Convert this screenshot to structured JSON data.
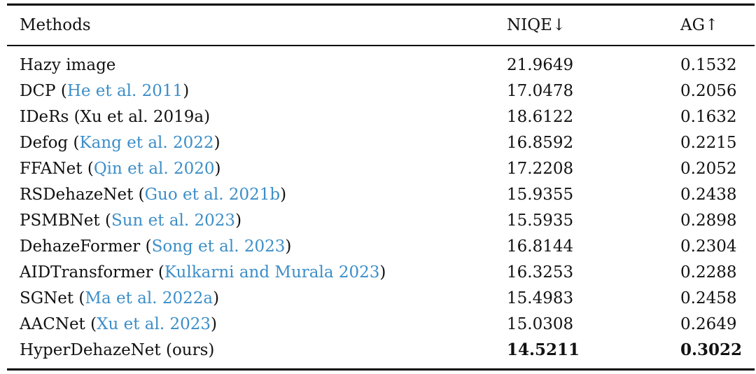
{
  "table": {
    "headers": {
      "method": "Methods",
      "niqe": "NIQE↓",
      "ag": "AG↑"
    },
    "rows": [
      {
        "name": "Hazy image",
        "cite": "",
        "niqe": "21.9649",
        "ag": "0.1532",
        "best": false
      },
      {
        "name": "DCP",
        "cite": "He et al. 2011",
        "niqe": "17.0478",
        "ag": "0.2056",
        "best": false
      },
      {
        "name": "IDeRs (Xu et al. 2019a)",
        "cite": "",
        "niqe": "18.6122",
        "ag": "0.1632",
        "best": false
      },
      {
        "name": "Defog",
        "cite": "Kang et al. 2022",
        "niqe": "16.8592",
        "ag": "0.2215",
        "best": false
      },
      {
        "name": "FFANet",
        "cite": "Qin et al. 2020",
        "niqe": "17.2208",
        "ag": "0.2052",
        "best": false
      },
      {
        "name": "RSDehazeNet",
        "cite": "Guo et al. 2021b",
        "niqe": "15.9355",
        "ag": "0.2438",
        "best": false
      },
      {
        "name": "PSMBNet",
        "cite": "Sun et al. 2023",
        "niqe": "15.5935",
        "ag": "0.2898",
        "best": false
      },
      {
        "name": "DehazeFormer",
        "cite": "Song et al. 2023",
        "niqe": "16.8144",
        "ag": "0.2304",
        "best": false
      },
      {
        "name": "AIDTransformer",
        "cite": "Kulkarni and Murala 2023",
        "niqe": "16.3253",
        "ag": "0.2288",
        "best": false
      },
      {
        "name": "SGNet",
        "cite": "Ma et al. 2022a",
        "niqe": "15.4983",
        "ag": "0.2458",
        "best": false
      },
      {
        "name": "AACNet",
        "cite": "Xu et al. 2023",
        "niqe": "15.0308",
        "ag": "0.2649",
        "best": false
      },
      {
        "name": "HyperDehazeNet (ours)",
        "cite": "",
        "niqe": "14.5211",
        "ag": "0.3022",
        "best": true
      }
    ]
  },
  "colors": {
    "citation": "#3c8ec8",
    "text": "#111111",
    "rule": "#000000"
  }
}
